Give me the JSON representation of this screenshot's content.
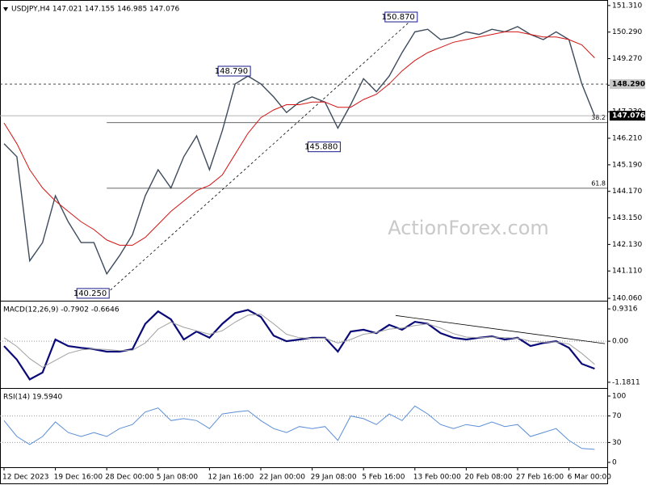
{
  "chart_data": [
    {
      "type": "line",
      "title": "USDJPY,H4  147.021 147.155 146.985 147.076",
      "watermark": "ActionForex.com",
      "categories": [
        "12 Dec 2023",
        null,
        null,
        null,
        "19 Dec 16:00",
        null,
        null,
        null,
        "28 Dec 00:00",
        null,
        null,
        null,
        "5 Jan 08:00",
        null,
        null,
        null,
        "12 Jan 16:00",
        null,
        null,
        null,
        "22 Jan 00:00",
        null,
        null,
        null,
        "29 Jan 08:00",
        null,
        null,
        null,
        "5 Feb 16:00",
        null,
        null,
        null,
        "13 Feb 00:00",
        null,
        null,
        null,
        "20 Feb 08:00",
        null,
        null,
        null,
        "27 Feb 16:00",
        null,
        null,
        null,
        "6 Mar 00:00",
        null,
        null
      ],
      "series": [
        {
          "color": "#3d4b5c",
          "values": [
            146.0,
            145.5,
            141.5,
            142.2,
            144.0,
            143.0,
            142.2,
            142.2,
            141.0,
            141.7,
            142.5,
            144.0,
            145.0,
            144.3,
            145.5,
            146.3,
            145.0,
            146.5,
            148.3,
            148.6,
            148.3,
            147.8,
            147.2,
            147.6,
            147.8,
            147.6,
            146.6,
            147.5,
            148.5,
            148.0,
            148.6,
            149.5,
            150.3,
            150.4,
            150.0,
            150.1,
            150.3,
            150.2,
            150.4,
            150.3,
            150.5,
            150.2,
            150.0,
            150.3,
            150.0,
            148.3,
            147.076
          ]
        },
        {
          "color": "#d41414",
          "values": [
            146.8,
            146.0,
            145.0,
            144.3,
            143.8,
            143.4,
            143.0,
            142.7,
            142.3,
            142.1,
            142.1,
            142.4,
            142.9,
            143.4,
            143.8,
            144.2,
            144.4,
            144.8,
            145.6,
            146.4,
            147.0,
            147.3,
            147.5,
            147.5,
            147.6,
            147.6,
            147.4,
            147.4,
            147.7,
            147.9,
            148.3,
            148.8,
            149.2,
            149.5,
            149.7,
            149.9,
            150.0,
            150.1,
            150.2,
            150.3,
            150.3,
            150.2,
            150.1,
            150.1,
            150.0,
            149.8,
            149.3
          ]
        }
      ],
      "ylim": [
        140.03,
        151.43
      ],
      "yticks": [
        {
          "value": 151.31,
          "label": "151.310"
        },
        {
          "value": 150.29,
          "label": "150.290"
        },
        {
          "value": 149.27,
          "label": "149.270"
        },
        {
          "value": 148.25,
          "label": "148.250"
        },
        {
          "value": 147.23,
          "label": "147.230"
        },
        {
          "value": 146.21,
          "label": "146.210"
        },
        {
          "value": 145.19,
          "label": "145.190"
        },
        {
          "value": 144.17,
          "label": "144.170"
        },
        {
          "value": 143.15,
          "label": "143.150"
        },
        {
          "value": 142.13,
          "label": "142.130"
        },
        {
          "value": 141.11,
          "label": "141.110"
        },
        {
          "value": 140.06,
          "label": "140.060"
        }
      ],
      "annotations": [
        {
          "x": 32,
          "value": 150.87,
          "label": "150.870"
        },
        {
          "x": 19,
          "value": 148.79,
          "label": "148.790"
        },
        {
          "x": 26,
          "value": 145.88,
          "label": "145.880"
        },
        {
          "x": 8,
          "value": 140.25,
          "label": "140.250"
        }
      ],
      "trend_line": {
        "x": [
          8,
          32
        ],
        "values": [
          140.25,
          150.87
        ]
      },
      "levels": [
        {
          "value": 148.29,
          "label": "148.290",
          "style": "dashed",
          "box": "#c8c8c8",
          "text_color": "#000000"
        },
        {
          "value": 147.076,
          "label": "147.076",
          "style": "solid",
          "box": "#000000",
          "text_color": "#ffffff"
        }
      ],
      "fib_levels": [
        {
          "value": 146.81,
          "label": "38.2"
        },
        {
          "value": 144.29,
          "label": "61.8"
        }
      ]
    },
    {
      "type": "line",
      "title": "MACD(12,26,9) -0.7902 -0.6646",
      "series": [
        {
          "color": "#0a0a78",
          "values": [
            -0.14,
            -0.53,
            -1.1,
            -0.9,
            0.05,
            -0.14,
            -0.19,
            -0.23,
            -0.3,
            -0.3,
            -0.23,
            0.5,
            0.86,
            0.63,
            0.05,
            0.28,
            0.1,
            0.5,
            0.81,
            0.9,
            0.7,
            0.16,
            0.0,
            0.05,
            0.1,
            0.1,
            -0.3,
            0.28,
            0.33,
            0.23,
            0.47,
            0.33,
            0.56,
            0.5,
            0.23,
            0.1,
            0.05,
            0.1,
            0.14,
            0.05,
            0.1,
            -0.14,
            -0.05,
            0.0,
            -0.19,
            -0.65,
            -0.7902
          ]
        },
        {
          "color": "#a0a0a0",
          "values": [
            0.1,
            -0.15,
            -0.5,
            -0.75,
            -0.55,
            -0.35,
            -0.25,
            -0.22,
            -0.24,
            -0.27,
            -0.26,
            -0.05,
            0.35,
            0.55,
            0.4,
            0.3,
            0.2,
            0.3,
            0.55,
            0.75,
            0.78,
            0.5,
            0.2,
            0.1,
            0.08,
            0.09,
            -0.05,
            0.05,
            0.2,
            0.25,
            0.35,
            0.38,
            0.45,
            0.5,
            0.38,
            0.22,
            0.12,
            0.1,
            0.12,
            0.1,
            0.09,
            0.0,
            -0.03,
            -0.02,
            -0.08,
            -0.35,
            -0.6646
          ]
        }
      ],
      "ylim": [
        -1.3,
        1.05
      ],
      "yticks": [
        0.9316,
        {
          "value": 0,
          "label": "0.00"
        },
        -1.1811
      ],
      "reference_lines": [
        0
      ],
      "trend_line": {
        "x": [
          30.5,
          46.8
        ],
        "values": [
          0.74,
          -0.07
        ]
      }
    },
    {
      "type": "line",
      "title": "RSI(14) 19.5940",
      "series": [
        {
          "color": "#5b8fd6",
          "values": [
            63,
            39,
            27,
            39,
            61,
            45,
            39,
            45,
            39,
            51,
            57,
            76,
            82,
            63,
            66,
            63,
            51,
            73,
            76,
            78,
            63,
            51,
            45,
            54,
            51,
            54,
            33,
            70,
            66,
            57,
            73,
            63,
            85,
            73,
            57,
            51,
            57,
            54,
            61,
            54,
            57,
            39,
            45,
            51,
            33,
            21,
            19.594
          ]
        }
      ],
      "ylim": [
        -7.3,
        108.5
      ],
      "yticks": [
        100,
        70,
        30,
        0
      ],
      "reference_lines": [
        70,
        30
      ]
    }
  ]
}
